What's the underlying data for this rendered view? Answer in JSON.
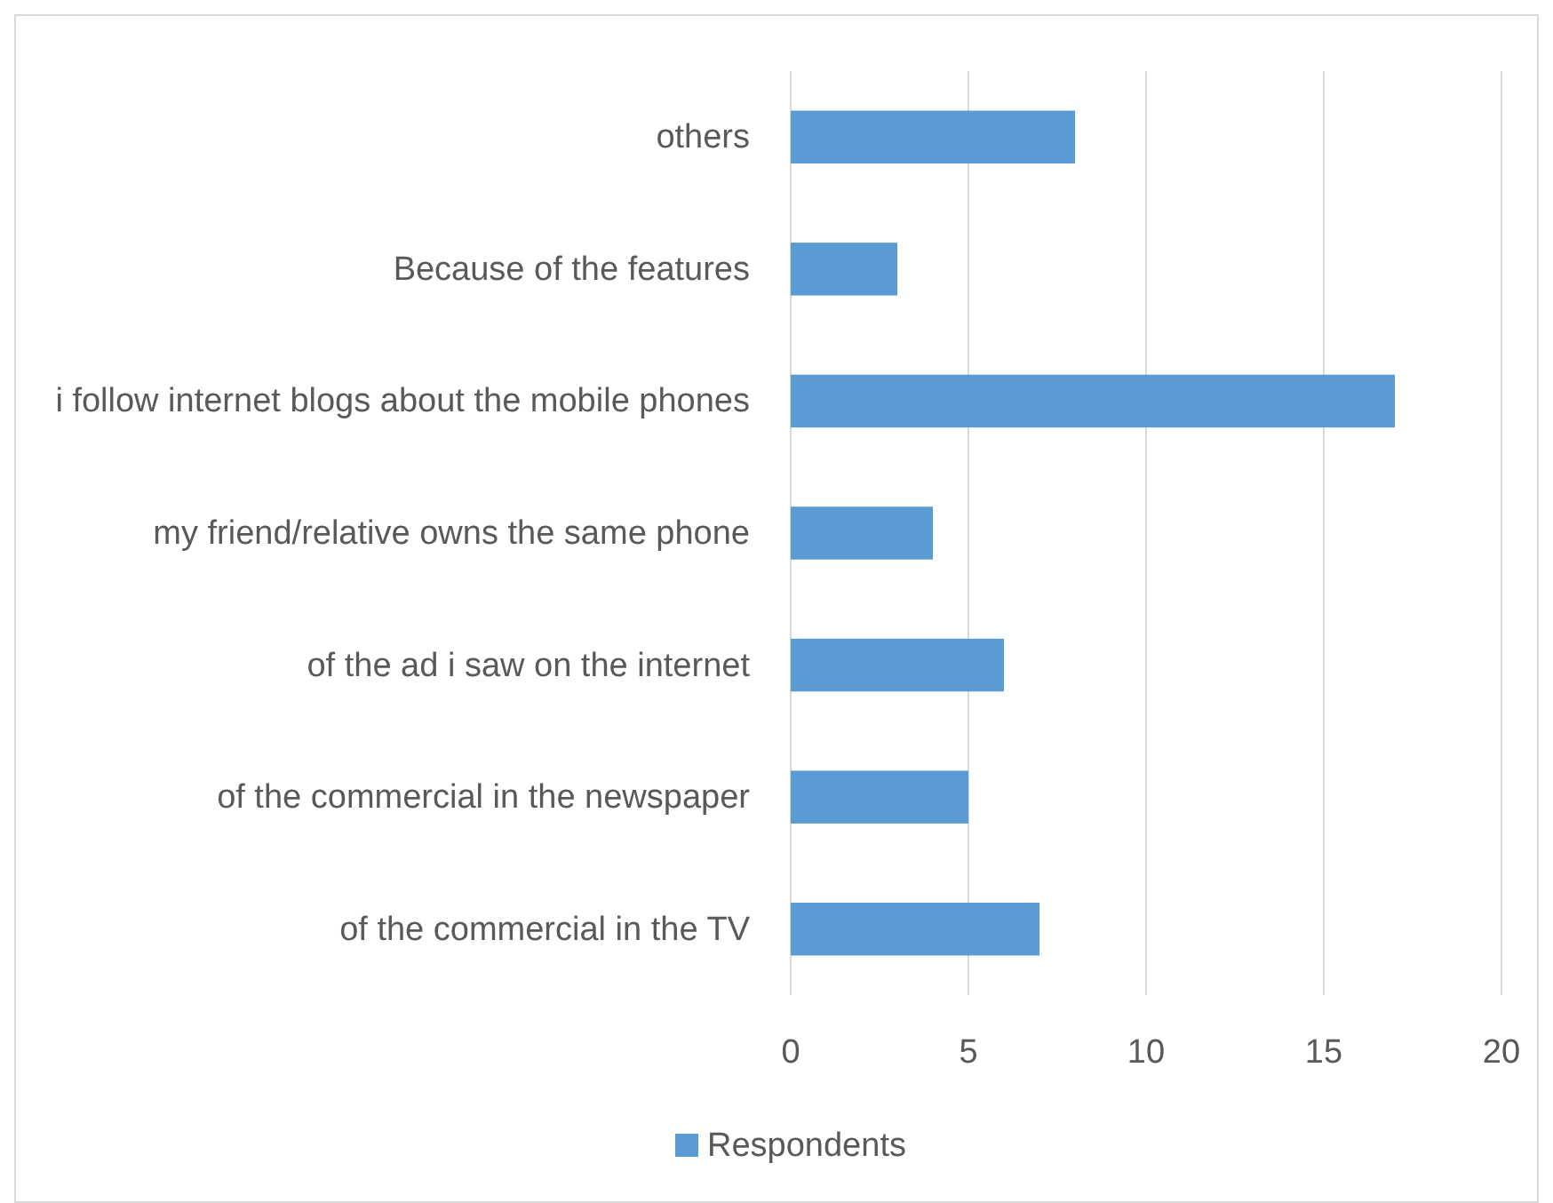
{
  "chart_data": {
    "type": "bar",
    "orientation": "horizontal",
    "categories": [
      "others",
      "Because of the features",
      "i follow internet blogs about the mobile phones",
      "my friend/relative owns the same phone",
      "of the ad i saw on the internet",
      "of the commercial in the newspaper",
      "of the commercial in the TV"
    ],
    "series": [
      {
        "name": "Respondents",
        "color": "#5b9bd5",
        "values": [
          8,
          3,
          17,
          4,
          6,
          5,
          7
        ]
      }
    ],
    "xlim": [
      0,
      20
    ],
    "xticks": [
      0,
      5,
      10,
      15,
      20
    ],
    "grid": "x",
    "legend": "bottom"
  }
}
